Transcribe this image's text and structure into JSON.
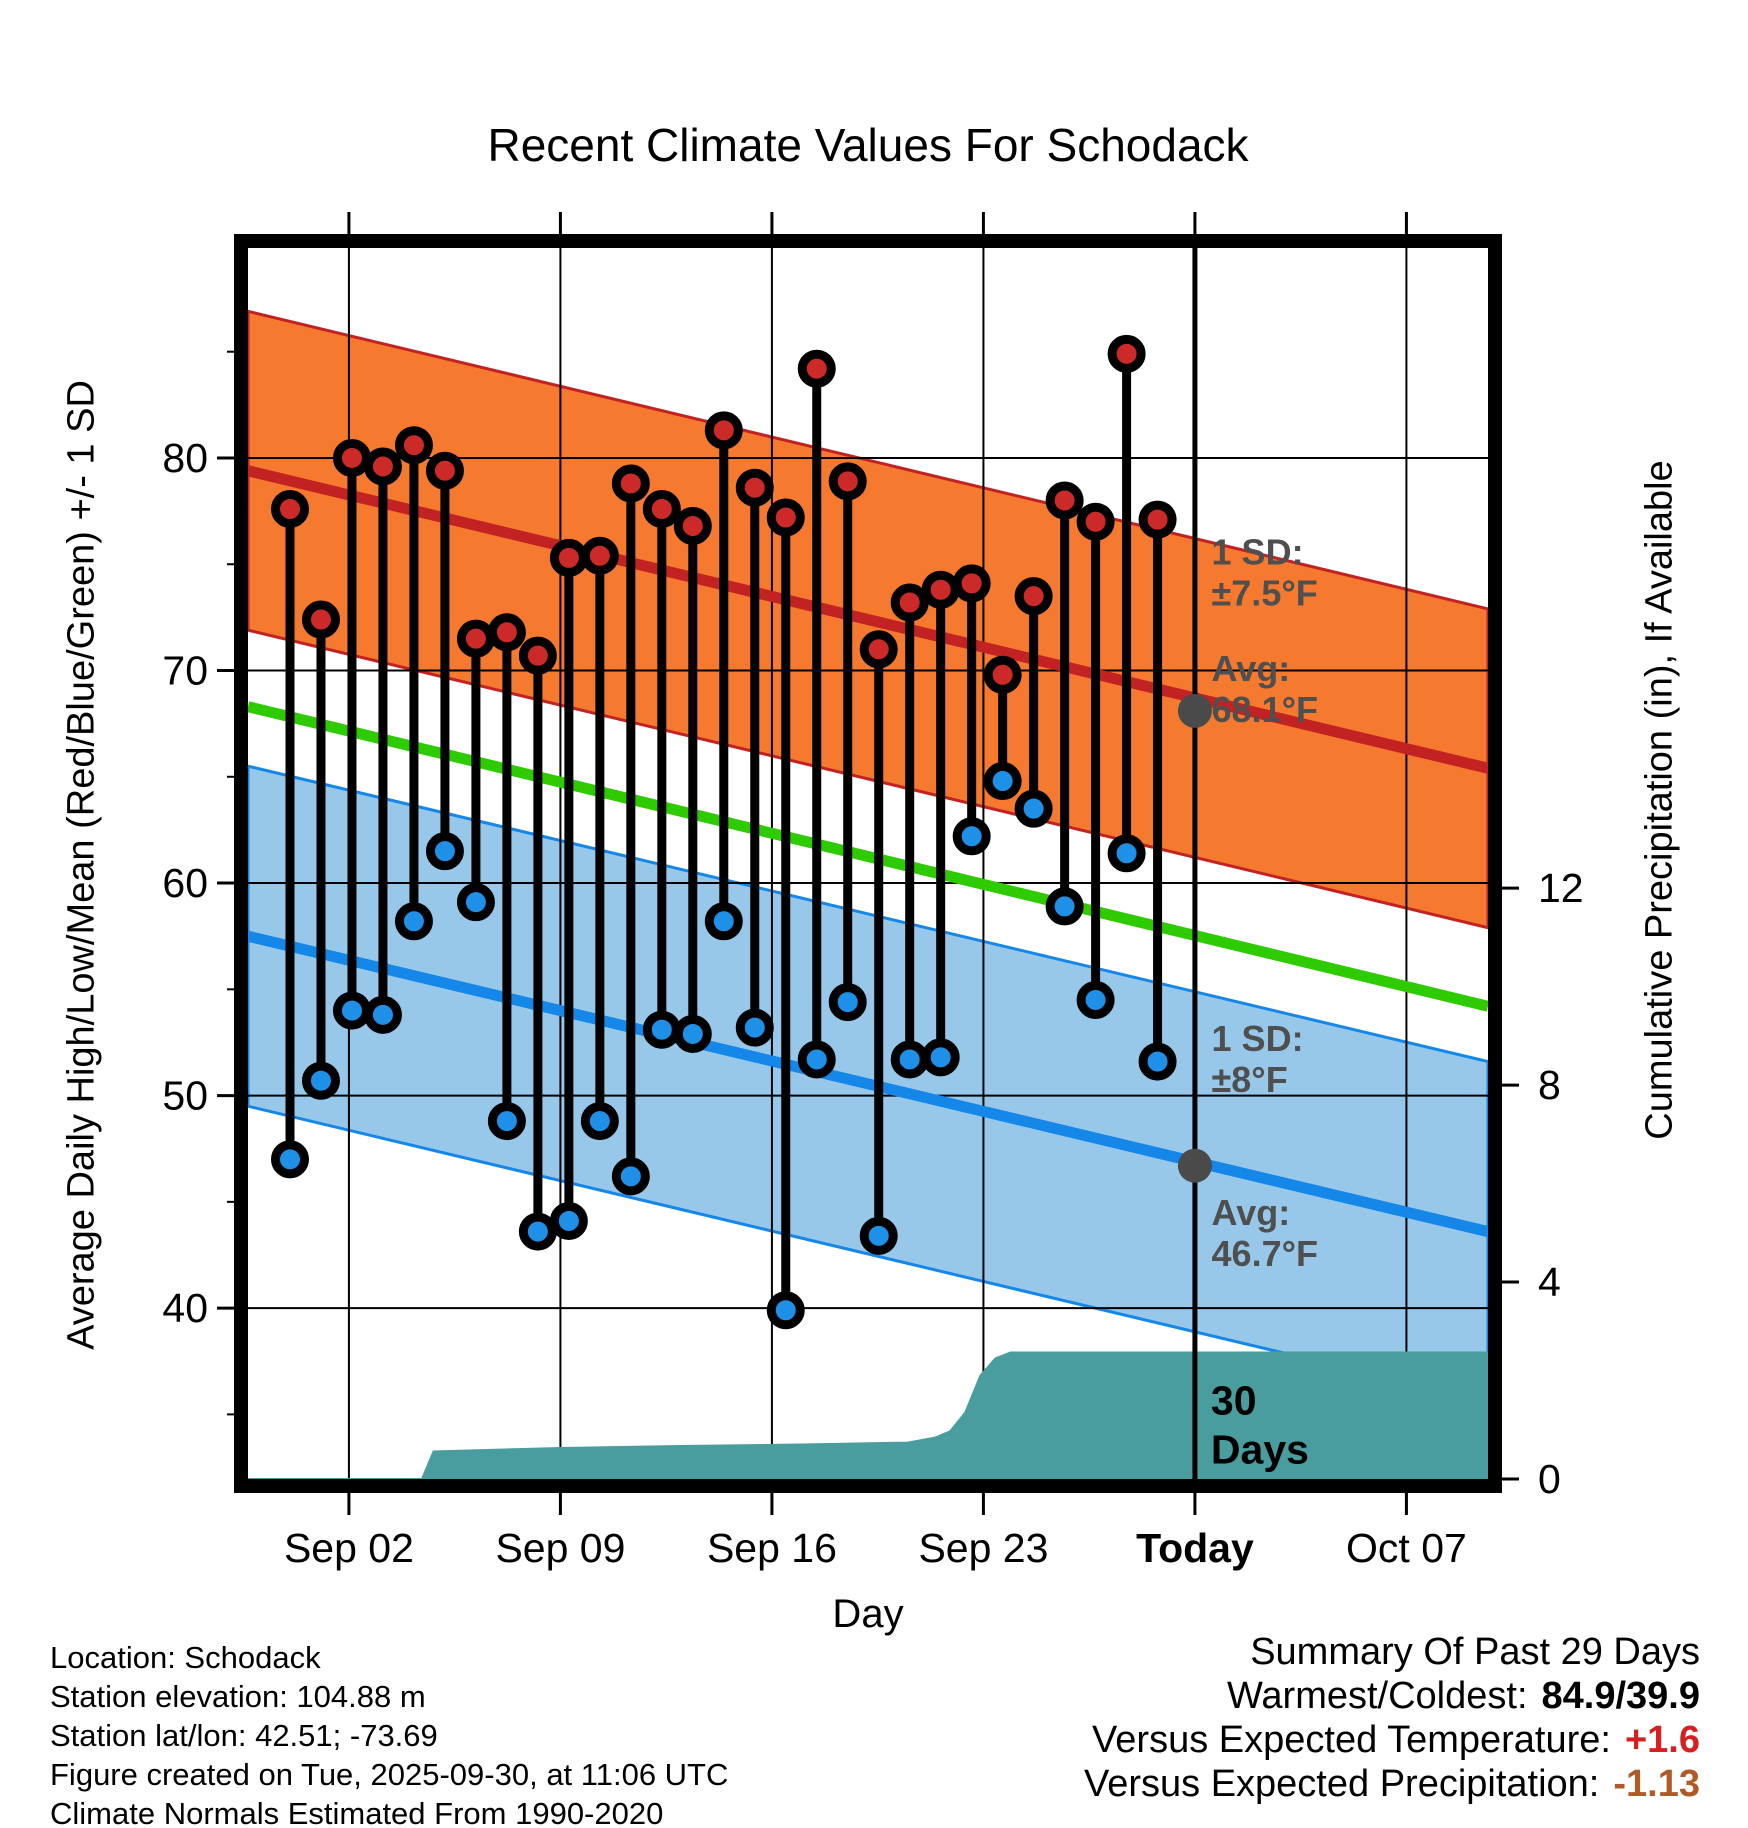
{
  "title": "Recent Climate Values For Schodack",
  "axes": {
    "left_label": "Average Daily High/Low/Mean (Red/Blue/Green) +/- 1 SD",
    "right_label": "Cumulative Precipitation (in), If Available",
    "x_label": "Day"
  },
  "meta": {
    "location": "Location: Schodack",
    "elevation": "Station elevation: 104.88 m",
    "latlon": "Station lat/lon: 42.51; -73.69",
    "created": "Figure created on Tue, 2025-09-30, at 11:06 UTC",
    "normals": "Climate Normals Estimated From 1990-2020"
  },
  "summary": {
    "title": "Summary Of Past 29 Days",
    "rows": [
      {
        "label": "Warmest/Coldest:",
        "value": "84.9/39.9",
        "color": "#000000"
      },
      {
        "label": "Versus Expected Temperature:",
        "value": "+1.6",
        "color": "#d42020"
      },
      {
        "label": "Versus Expected Precipitation:",
        "value": "-1.13",
        "color": "#b05a28"
      }
    ]
  },
  "chart_data": {
    "type": "composite",
    "title": "Recent Climate Values For Schodack",
    "xlabel": "Day",
    "ylabel_left": "Average Daily High/Low/Mean (Red/Blue/Green) +/- 1 SD",
    "ylabel_right": "Cumulative Precipitation (in), If Available",
    "x_axis": {
      "domain_days": [
        -1.34,
        39.7
      ],
      "ticks": [
        {
          "day": 2,
          "label": "Sep 02"
        },
        {
          "day": 9,
          "label": "Sep 09"
        },
        {
          "day": 16,
          "label": "Sep 16"
        },
        {
          "day": 23,
          "label": "Sep 23"
        },
        {
          "day": 30,
          "label": "Today",
          "bold": true,
          "today_line": true
        },
        {
          "day": 37,
          "label": "Oct 07"
        }
      ]
    },
    "temp_axis": {
      "domain_f": [
        31.96,
        89.88
      ],
      "major_ticks": [
        80,
        70,
        60,
        50,
        40
      ],
      "minor_ticks": [
        85,
        75,
        65,
        55,
        45,
        35
      ]
    },
    "precip_axis": {
      "domain_in": [
        0,
        25
      ],
      "ticks": [
        12,
        8,
        4,
        0
      ]
    },
    "normals": {
      "high": {
        "start_f": 79.4,
        "end_f": 65.4,
        "sd_f": 7.5,
        "line_color": "#c32222",
        "band_color": "#f5792e"
      },
      "mean": {
        "start_f": 68.3,
        "end_f": 54.2,
        "line_color": "#2ecb00"
      },
      "low": {
        "start_f": 57.5,
        "end_f": 43.6,
        "sd_f": 8.0,
        "line_color": "#1487e8",
        "band_color": "#97c8ea"
      }
    },
    "daily": {
      "first_day": 0.05,
      "day_step": 1.0255,
      "high_color": "#cc2929",
      "low_color": "#1e90e8",
      "values": [
        {
          "high": 77.6,
          "low": 47.0
        },
        {
          "high": 72.4,
          "low": 50.7
        },
        {
          "high": 80.0,
          "low": 54.0
        },
        {
          "high": 79.6,
          "low": 53.8
        },
        {
          "high": 80.6,
          "low": 58.2
        },
        {
          "high": 79.4,
          "low": 61.5
        },
        {
          "high": 71.5,
          "low": 59.1
        },
        {
          "high": 71.8,
          "low": 48.8
        },
        {
          "high": 70.7,
          "low": 43.6
        },
        {
          "high": 75.3,
          "low": 44.1
        },
        {
          "high": 75.4,
          "low": 48.8
        },
        {
          "high": 78.8,
          "low": 46.2
        },
        {
          "high": 77.6,
          "low": 53.1
        },
        {
          "high": 76.8,
          "low": 52.9
        },
        {
          "high": 81.3,
          "low": 58.2
        },
        {
          "high": 78.6,
          "low": 53.2
        },
        {
          "high": 77.2,
          "low": 39.9
        },
        {
          "high": 84.2,
          "low": 51.7
        },
        {
          "high": 78.9,
          "low": 54.4
        },
        {
          "high": 71.0,
          "low": 43.4
        },
        {
          "high": 73.2,
          "low": 51.7
        },
        {
          "high": 73.8,
          "low": 51.8
        },
        {
          "high": 74.1,
          "low": 62.2
        },
        {
          "high": 69.8,
          "low": 64.8
        },
        {
          "high": 73.5,
          "low": 63.5
        },
        {
          "high": 78.0,
          "low": 58.9
        },
        {
          "high": 77.0,
          "low": 54.5
        },
        {
          "high": 84.9,
          "low": 61.4
        },
        {
          "high": 77.1,
          "low": 51.6
        }
      ]
    },
    "precip_series": {
      "color": "#4a9d9e",
      "points": [
        [
          -1.34,
          0
        ],
        [
          4.42,
          0
        ],
        [
          4.8,
          0.56
        ],
        [
          9,
          0.63
        ],
        [
          13,
          0.67
        ],
        [
          17,
          0.7
        ],
        [
          20.5,
          0.74
        ],
        [
          21.4,
          0.84
        ],
        [
          21.9,
          0.97
        ],
        [
          22.4,
          1.35
        ],
        [
          22.9,
          2.1
        ],
        [
          23.4,
          2.45
        ],
        [
          23.9,
          2.57
        ],
        [
          39.7,
          2.57
        ]
      ]
    },
    "today_marker": {
      "day": 30,
      "avg_high_f": 68.1,
      "avg_low_f": 46.7,
      "dot_color": "#4a4a4a",
      "line_label": [
        "30",
        "Days"
      ]
    },
    "annotations": [
      {
        "lines": [
          "1 SD:",
          "±7.5°F"
        ],
        "day": 30.55,
        "baseline_f": 75.0,
        "color": "#4f4f4f"
      },
      {
        "lines": [
          "Avg:",
          "68.1°F"
        ],
        "day": 30.55,
        "baseline_f": 69.5,
        "color": "#4f4f4f"
      },
      {
        "lines": [
          "1 SD:",
          "±8°F"
        ],
        "day": 30.55,
        "baseline_f": 52.1,
        "color": "#4f4f4f"
      },
      {
        "lines": [
          "Avg:",
          "46.7°F"
        ],
        "day": 30.55,
        "baseline_f": 43.9,
        "color": "#4f4f4f"
      }
    ]
  }
}
